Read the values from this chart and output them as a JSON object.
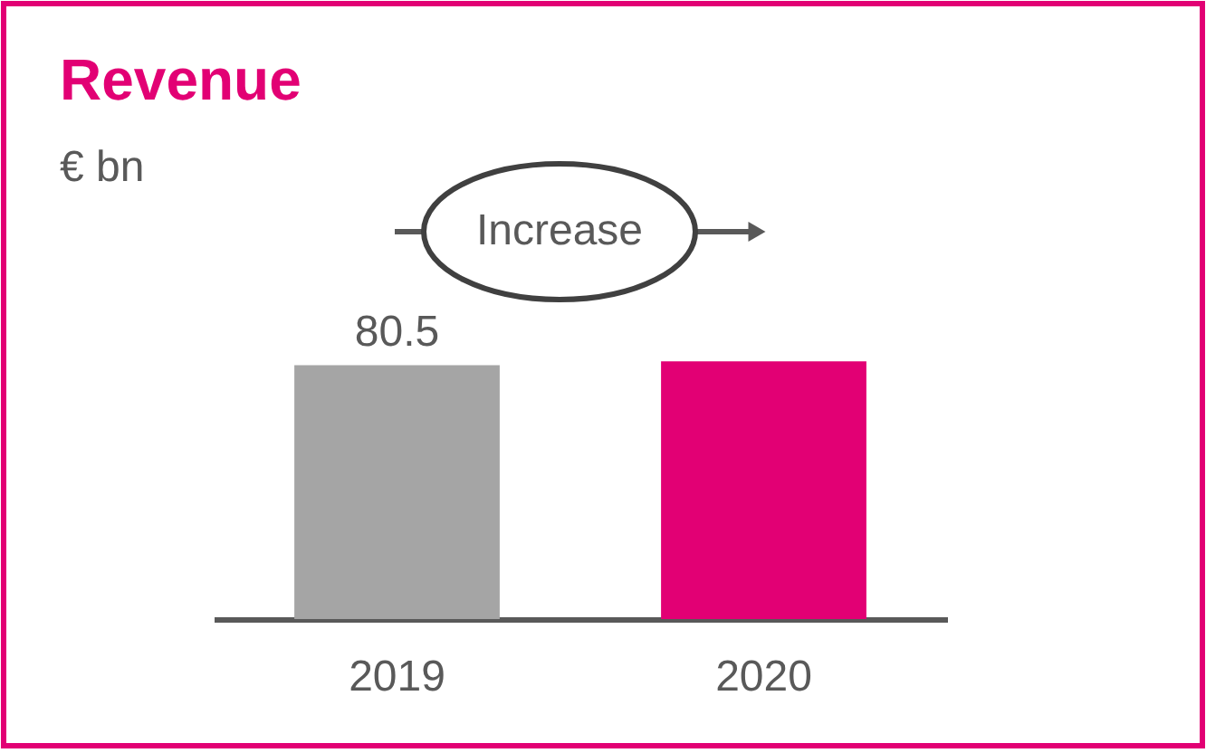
{
  "chart_data": {
    "type": "bar",
    "title": "Revenue",
    "subtitle": "€ bn",
    "categories": [
      "2019",
      "2020"
    ],
    "values": [
      80.5,
      81.7
    ],
    "colors": [
      "#a5a5a5",
      "#e20074"
    ],
    "value_labels": [
      "80.5",
      null
    ],
    "annotations": [
      "Increase"
    ]
  }
}
